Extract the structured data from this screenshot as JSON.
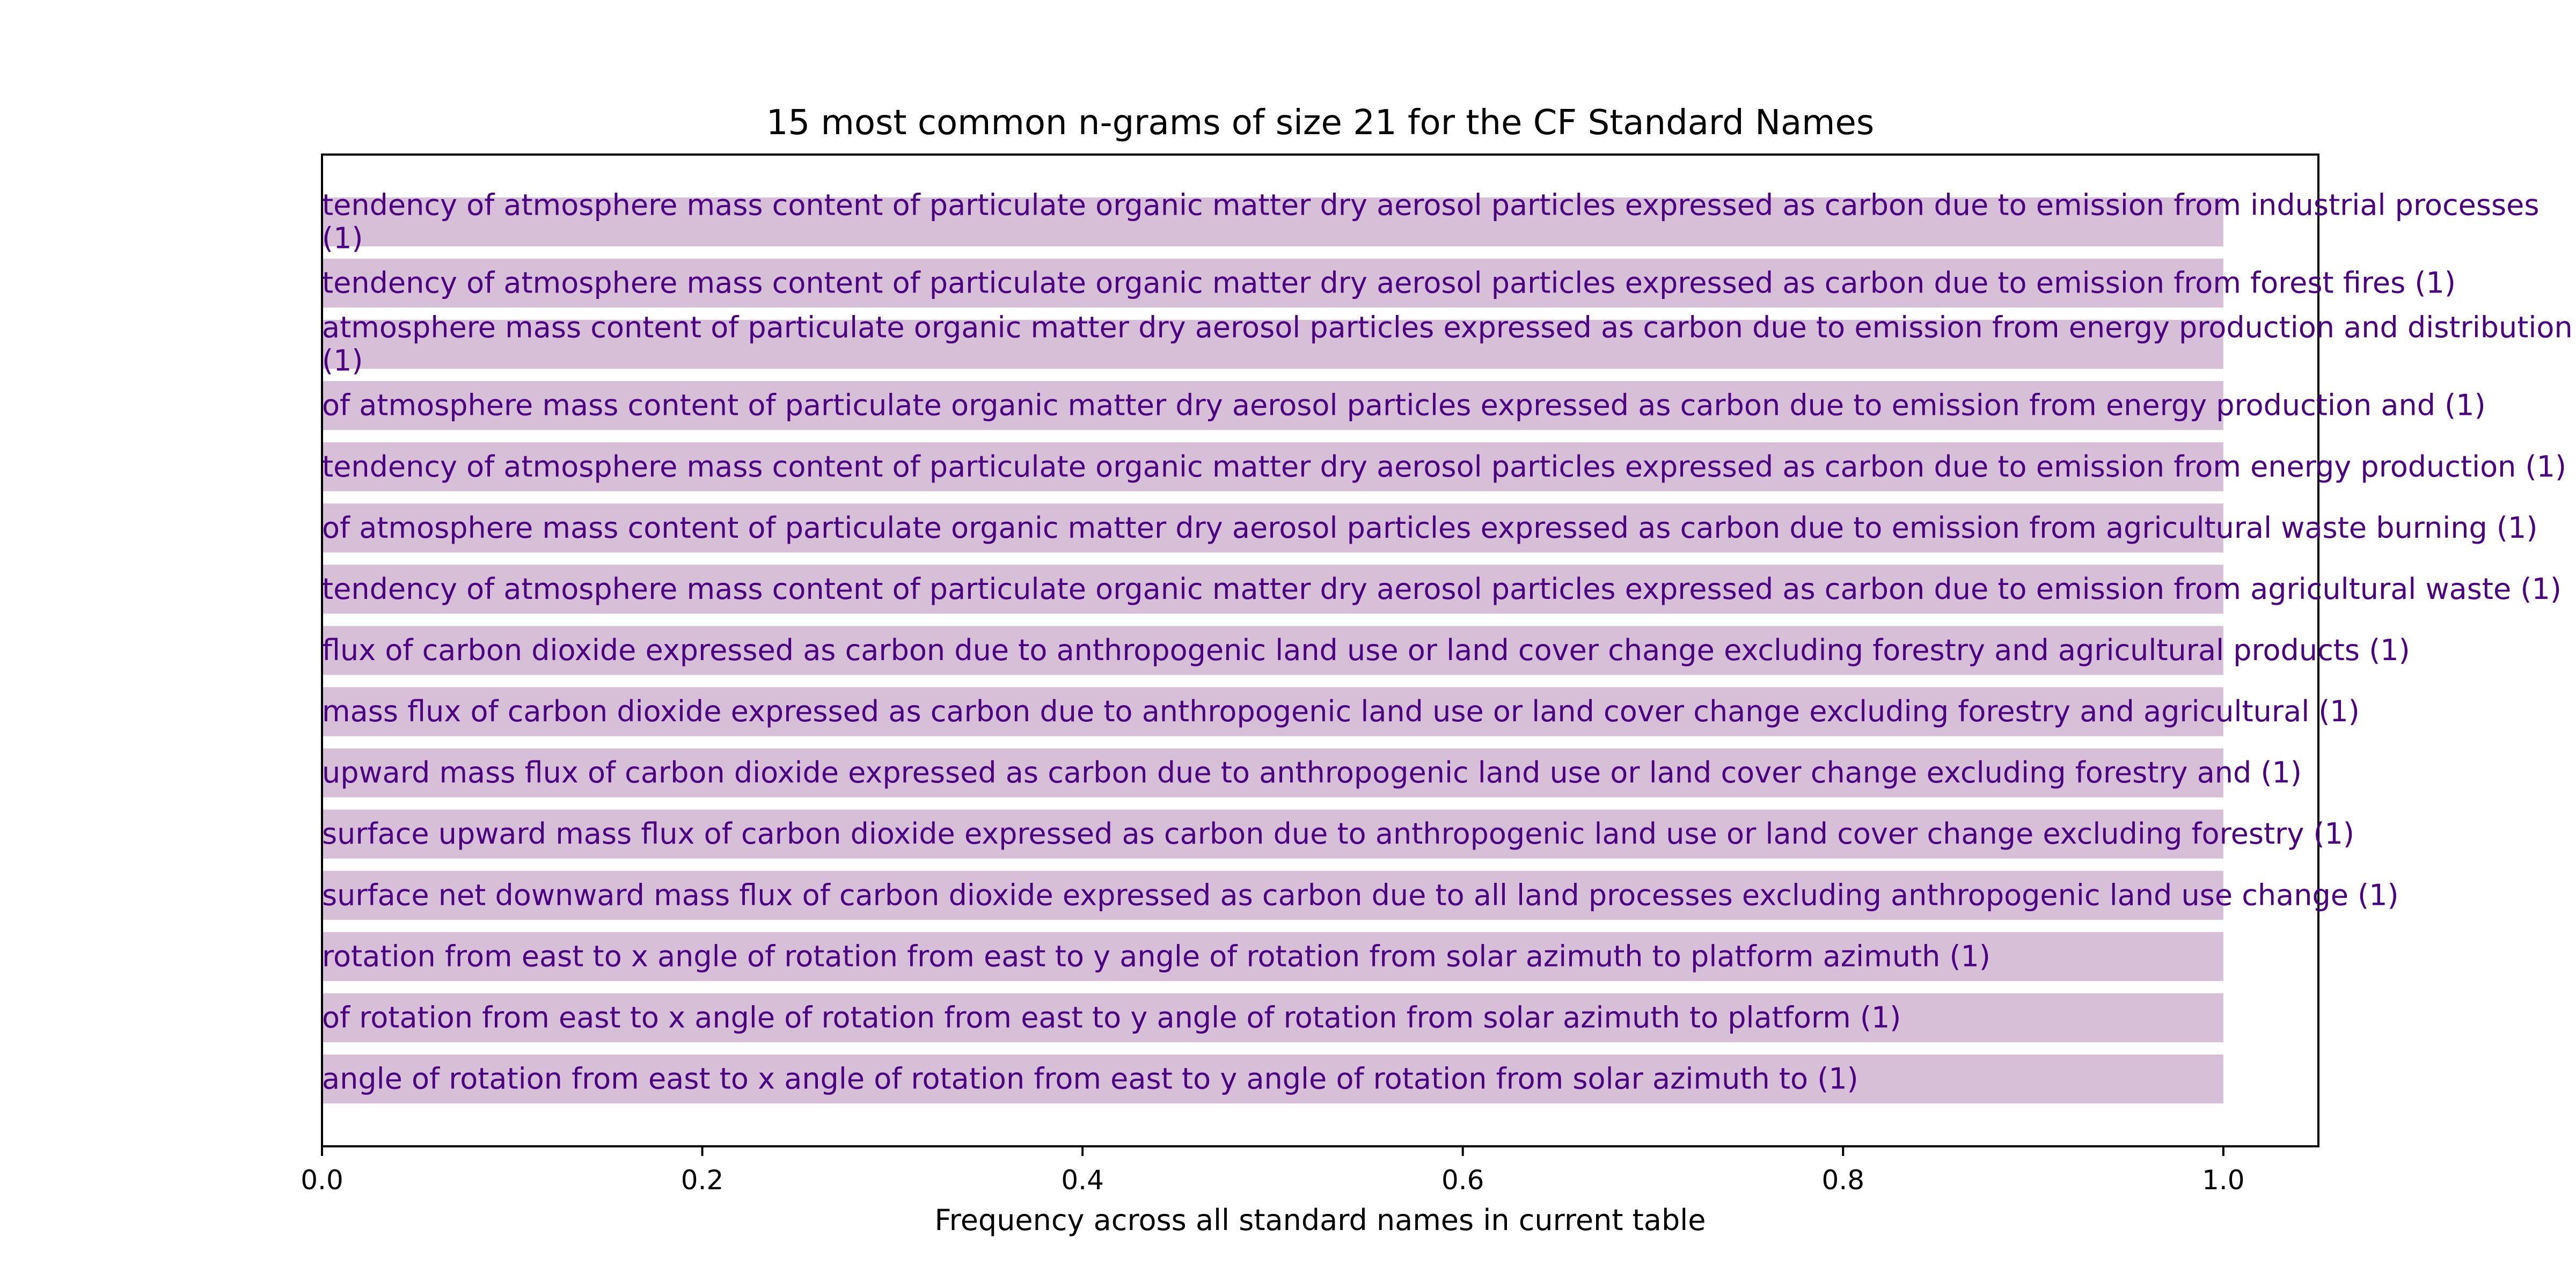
{
  "colors": {
    "bar": "#d8bfd8",
    "label": "#4b0082",
    "axis": "#000000"
  },
  "chart_data": {
    "type": "bar",
    "orientation": "horizontal",
    "title": "15 most common n-grams of size 21 for the CF Standard Names",
    "xlabel": "Frequency across all standard names in current table",
    "ylabel": "",
    "xlim": [
      0,
      1.05
    ],
    "xticks": [
      "0.0",
      "0.2",
      "0.4",
      "0.6",
      "0.8",
      "1.0"
    ],
    "grid": false,
    "categories": [
      "tendency of atmosphere mass content of particulate organic matter dry aerosol particles expressed as carbon due to emission from industrial processes (1)",
      "tendency of atmosphere mass content of particulate organic matter dry aerosol particles expressed as carbon due to emission from forest fires (1)",
      "atmosphere mass content of particulate organic matter dry aerosol particles expressed as carbon due to emission from energy production and distribution (1)",
      "of atmosphere mass content of particulate organic matter dry aerosol particles expressed as carbon due to emission from energy production and (1)",
      "tendency of atmosphere mass content of particulate organic matter dry aerosol particles expressed as carbon due to emission from energy production (1)",
      "of atmosphere mass content of particulate organic matter dry aerosol particles expressed as carbon due to emission from agricultural waste burning (1)",
      "tendency of atmosphere mass content of particulate organic matter dry aerosol particles expressed as carbon due to emission from agricultural waste (1)",
      "flux of carbon dioxide expressed as carbon due to anthropogenic land use or land cover change excluding forestry and agricultural products (1)",
      "mass flux of carbon dioxide expressed as carbon due to anthropogenic land use or land cover change excluding forestry and agricultural (1)",
      "upward mass flux of carbon dioxide expressed as carbon due to anthropogenic land use or land cover change excluding forestry and (1)",
      "surface upward mass flux of carbon dioxide expressed as carbon due to anthropogenic land use or land cover change excluding forestry (1)",
      "surface net downward mass flux of carbon dioxide expressed as carbon due to all land processes excluding anthropogenic land use change (1)",
      "rotation from east to x angle of rotation from east to y angle of rotation from solar azimuth to platform azimuth (1)",
      "of rotation from east to x angle of rotation from east to y angle of rotation from solar azimuth to platform (1)",
      "angle of rotation from east to x angle of rotation from east to y angle of rotation from solar azimuth to (1)"
    ],
    "values": [
      1,
      1,
      1,
      1,
      1,
      1,
      1,
      1,
      1,
      1,
      1,
      1,
      1,
      1,
      1
    ]
  }
}
